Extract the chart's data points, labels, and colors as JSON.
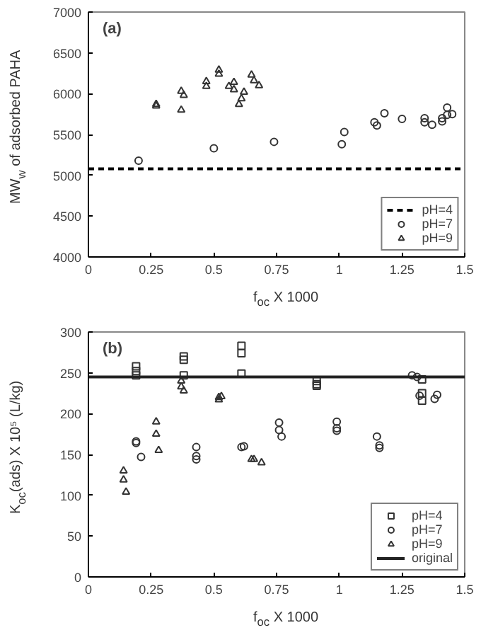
{
  "chart_data": [
    {
      "type": "scatter",
      "xlabel": "f$_{oc}$ X 1000",
      "ylabel": "MW$_{w}$ of adsorbed PAHA",
      "annotations": [
        "(a)"
      ],
      "xlim": [
        0,
        1.5
      ],
      "xticks": [
        0,
        0.25,
        0.5,
        0.75,
        1,
        1.25,
        1.5
      ],
      "ylim": [
        4000,
        7000
      ],
      "yticks": [
        4000,
        4500,
        5000,
        5500,
        6000,
        6500,
        7000
      ],
      "grid": false,
      "legend": "bottom right",
      "series": [
        {
          "name": "pH=4",
          "type": "line",
          "line_style": "dashed",
          "marker": "none",
          "color": "#000000",
          "x": [
            0,
            1.5
          ],
          "values": [
            5080,
            5080
          ]
        },
        {
          "name": "pH=7",
          "marker": "circle",
          "color": "#333333",
          "x": [
            0.2,
            0.5,
            0.74,
            1.01,
            1.02,
            1.14,
            1.15,
            1.18,
            1.25,
            1.34,
            1.34,
            1.37,
            1.41,
            1.41,
            1.43,
            1.43,
            1.45
          ],
          "values": [
            5180,
            5330,
            5410,
            5380,
            5530,
            5650,
            5610,
            5760,
            5690,
            5700,
            5650,
            5620,
            5660,
            5700,
            5740,
            5830,
            5750
          ]
        },
        {
          "name": "pH=9",
          "marker": "triangle",
          "color": "#333333",
          "x": [
            0.27,
            0.27,
            0.37,
            0.38,
            0.37,
            0.47,
            0.47,
            0.52,
            0.52,
            0.56,
            0.58,
            0.58,
            0.6,
            0.61,
            0.62,
            0.65,
            0.66,
            0.68
          ],
          "values": [
            5870,
            5850,
            6030,
            5980,
            5800,
            6150,
            6090,
            6290,
            6240,
            6090,
            6140,
            6050,
            5870,
            5940,
            6020,
            6230,
            6160,
            6100
          ]
        }
      ]
    },
    {
      "type": "scatter",
      "xlabel": "f$_{oc}$ X 1000",
      "ylabel": "K$_{oc}$(ads) X 10⁵ (L/kg)",
      "annotations": [
        "(b)"
      ],
      "xlim": [
        0,
        1.5
      ],
      "xticks": [
        0,
        0.25,
        0.5,
        0.75,
        1,
        1.25,
        1.5
      ],
      "ylim": [
        0,
        300
      ],
      "yticks": [
        0,
        50,
        100,
        150,
        200,
        250,
        300
      ],
      "grid": false,
      "legend": "bottom right",
      "series": [
        {
          "name": "pH=4",
          "marker": "square",
          "color": "#333333",
          "x": [
            0.19,
            0.19,
            0.19,
            0.38,
            0.38,
            0.38,
            0.61,
            0.61,
            0.61,
            0.91,
            0.91,
            0.91,
            1.33,
            1.33,
            1.33
          ],
          "values": [
            258,
            252,
            247,
            270,
            266,
            247,
            283,
            274,
            249,
            240,
            236,
            234,
            242,
            225,
            216
          ]
        },
        {
          "name": "pH=7",
          "marker": "circle",
          "color": "#333333",
          "x": [
            0.19,
            0.19,
            0.21,
            0.43,
            0.43,
            0.43,
            0.61,
            0.62,
            0.76,
            0.76,
            0.77,
            0.99,
            0.99,
            0.99,
            1.15,
            1.16,
            1.16,
            1.29,
            1.31,
            1.32,
            1.38,
            1.39
          ],
          "values": [
            166,
            164,
            147,
            159,
            148,
            144,
            159,
            160,
            189,
            180,
            172,
            190,
            182,
            179,
            172,
            161,
            158,
            247,
            245,
            222,
            218,
            223
          ]
        },
        {
          "name": "pH=9",
          "marker": "triangle",
          "color": "#333333",
          "x": [
            0.14,
            0.14,
            0.15,
            0.27,
            0.27,
            0.28,
            0.37,
            0.37,
            0.38,
            0.52,
            0.52,
            0.53,
            0.65,
            0.66,
            0.69
          ],
          "values": [
            130,
            119,
            104,
            190,
            175,
            155,
            240,
            233,
            228,
            220,
            217,
            221,
            144,
            144,
            140
          ]
        },
        {
          "name": "original",
          "type": "line",
          "line_style": "solid",
          "marker": "none",
          "color": "#222222",
          "x": [
            0,
            1.5
          ],
          "values": [
            245,
            245
          ]
        }
      ]
    }
  ]
}
